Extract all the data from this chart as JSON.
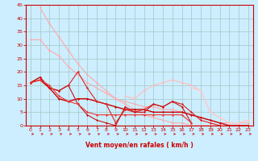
{
  "xlabel": "Vent moyen/en rafales ( km/h )",
  "bg_color": "#cceeff",
  "grid_color": "#aacccc",
  "axis_color": "#cc0000",
  "xlim": [
    -0.5,
    23.5
  ],
  "ylim": [
    0,
    45
  ],
  "xticks": [
    0,
    1,
    2,
    3,
    4,
    5,
    6,
    7,
    8,
    9,
    10,
    11,
    12,
    13,
    14,
    15,
    16,
    17,
    18,
    19,
    20,
    21,
    22,
    23
  ],
  "yticks": [
    0,
    5,
    10,
    15,
    20,
    25,
    30,
    35,
    40,
    45
  ],
  "series": [
    {
      "x": [
        1,
        2,
        3,
        4,
        5,
        6,
        7,
        8,
        9,
        10,
        11,
        12,
        13,
        14,
        15,
        16,
        17,
        18,
        19,
        20,
        21,
        22,
        23
      ],
      "y": [
        44,
        38,
        33,
        28,
        23,
        19,
        16,
        13,
        10,
        8,
        6,
        4,
        3,
        2,
        1,
        1,
        0,
        0,
        0,
        0,
        0,
        0,
        0
      ],
      "color": "#ffaaaa",
      "marker": "D",
      "markersize": 1.5,
      "linewidth": 0.8
    },
    {
      "x": [
        0,
        1,
        2,
        3,
        4,
        5,
        6,
        7,
        8,
        9,
        10,
        11,
        12,
        13,
        14,
        15,
        16,
        17,
        18,
        19,
        20,
        21,
        22,
        23
      ],
      "y": [
        32,
        32,
        28,
        26,
        22,
        19,
        16,
        14,
        12,
        10,
        9,
        8,
        7,
        7,
        6,
        6,
        5,
        4,
        3,
        2,
        1,
        1,
        1,
        1
      ],
      "color": "#ffaaaa",
      "marker": "D",
      "markersize": 1.5,
      "linewidth": 0.8
    },
    {
      "x": [
        10,
        11,
        12,
        13,
        14,
        15,
        16,
        17,
        18,
        19,
        20,
        21,
        22,
        23
      ],
      "y": [
        11,
        10,
        13,
        15,
        16,
        17,
        16,
        15,
        13,
        5,
        3,
        1,
        1,
        2
      ],
      "color": "#ffbbbb",
      "marker": "D",
      "markersize": 1.5,
      "linewidth": 0.8
    },
    {
      "x": [
        17,
        18,
        19,
        20,
        21,
        22,
        23
      ],
      "y": [
        14,
        13,
        5,
        3,
        1,
        1,
        2
      ],
      "color": "#ffcccc",
      "marker": "D",
      "markersize": 1.5,
      "linewidth": 0.8
    },
    {
      "x": [
        0,
        1,
        2,
        3,
        4,
        5,
        6,
        7,
        8,
        9,
        10,
        11,
        12,
        13,
        14,
        15,
        16,
        17,
        18,
        19,
        20,
        21,
        22,
        23
      ],
      "y": [
        16,
        18,
        14,
        10,
        9,
        10,
        10,
        9,
        8,
        7,
        6,
        6,
        6,
        5,
        5,
        5,
        5,
        4,
        3,
        2,
        1,
        0,
        0,
        0
      ],
      "color": "#cc0000",
      "marker": "D",
      "markersize": 1.5,
      "linewidth": 1.0
    },
    {
      "x": [
        0,
        1,
        2,
        3,
        4,
        5,
        6,
        7,
        8,
        9,
        10,
        11,
        12,
        13,
        14,
        15,
        16,
        17,
        18,
        19,
        20
      ],
      "y": [
        16,
        17,
        14,
        13,
        15,
        20,
        14,
        9,
        8,
        1,
        6,
        5,
        6,
        8,
        7,
        9,
        8,
        5,
        2,
        1,
        0
      ],
      "color": "#dd2222",
      "marker": "D",
      "markersize": 1.5,
      "linewidth": 0.8
    },
    {
      "x": [
        0,
        1,
        2,
        3,
        4,
        5,
        6,
        7,
        8,
        9,
        10,
        11,
        12,
        13,
        14,
        15,
        16,
        17
      ],
      "y": [
        16,
        17,
        14,
        13,
        15,
        8,
        4,
        2,
        1,
        0,
        7,
        5,
        5,
        8,
        7,
        9,
        7,
        1
      ],
      "color": "#cc1111",
      "marker": "D",
      "markersize": 1.5,
      "linewidth": 0.8
    },
    {
      "x": [
        0,
        1,
        2,
        3,
        4,
        5,
        6,
        7,
        8,
        9,
        10,
        11,
        12,
        13,
        14,
        15,
        16,
        17
      ],
      "y": [
        16,
        17,
        15,
        11,
        9,
        8,
        5,
        4,
        4,
        4,
        4,
        4,
        4,
        4,
        4,
        4,
        4,
        1
      ],
      "color": "#ee3333",
      "marker": "D",
      "markersize": 1.5,
      "linewidth": 0.8
    }
  ]
}
